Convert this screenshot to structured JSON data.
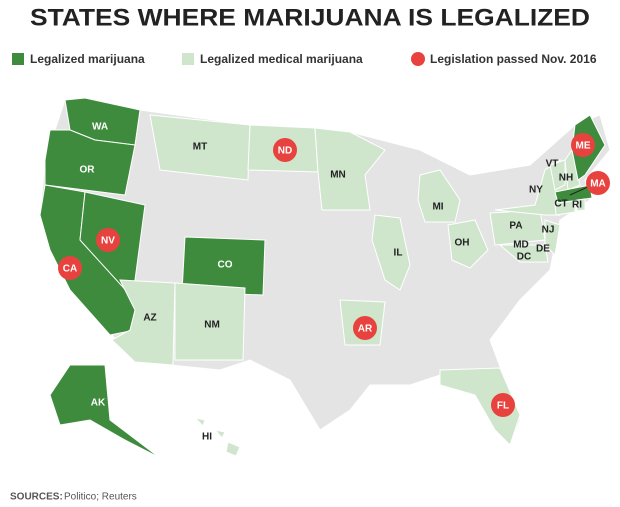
{
  "title": "STATES WHERE MARIJUANA IS LEGALIZED",
  "legend": [
    {
      "label": "Legalized marijuana",
      "color": "#3e8b3e"
    },
    {
      "label": "Legalized medical marijuana",
      "color": "#cfe6cd"
    },
    {
      "label": "Legislation passed Nov. 2016",
      "color": "#e8423f"
    }
  ],
  "states": [
    {
      "label": "WA",
      "category": 0,
      "marker": false
    },
    {
      "label": "OR",
      "category": 0,
      "marker": false
    },
    {
      "label": "CA",
      "category": 0,
      "marker": true
    },
    {
      "label": "NV",
      "category": 0,
      "marker": true
    },
    {
      "label": "MT",
      "category": 1,
      "marker": false
    },
    {
      "label": "ND",
      "category": 1,
      "marker": true
    },
    {
      "label": "MN",
      "category": 1,
      "marker": false
    },
    {
      "label": "CO",
      "category": 0,
      "marker": false
    },
    {
      "label": "AZ",
      "category": 1,
      "marker": false
    },
    {
      "label": "NM",
      "category": 1,
      "marker": false
    },
    {
      "label": "AR",
      "category": 1,
      "marker": true
    },
    {
      "label": "IL",
      "category": 1,
      "marker": false
    },
    {
      "label": "MI",
      "category": 1,
      "marker": false
    },
    {
      "label": "OH",
      "category": 1,
      "marker": false
    },
    {
      "label": "PA",
      "category": 1,
      "marker": false
    },
    {
      "label": "NY",
      "category": 1,
      "marker": false
    },
    {
      "label": "NJ",
      "category": 1,
      "marker": false
    },
    {
      "label": "MD",
      "category": 1,
      "marker": false
    },
    {
      "label": "DE",
      "category": 1,
      "marker": false
    },
    {
      "label": "DC",
      "category": 1,
      "marker": false
    },
    {
      "label": "VT",
      "category": 1,
      "marker": false
    },
    {
      "label": "NH",
      "category": 1,
      "marker": false
    },
    {
      "label": "ME",
      "category": 0,
      "marker": true
    },
    {
      "label": "MA",
      "category": 0,
      "marker": true
    },
    {
      "label": "CT",
      "category": 1,
      "marker": false
    },
    {
      "label": "RI",
      "category": 1,
      "marker": false
    },
    {
      "label": "FL",
      "category": 1,
      "marker": true
    },
    {
      "label": "AK",
      "category": 0,
      "marker": false
    },
    {
      "label": "HI",
      "category": 1,
      "marker": false
    }
  ],
  "source": {
    "label": "SOURCES:",
    "text": "Politico; Reuters"
  }
}
